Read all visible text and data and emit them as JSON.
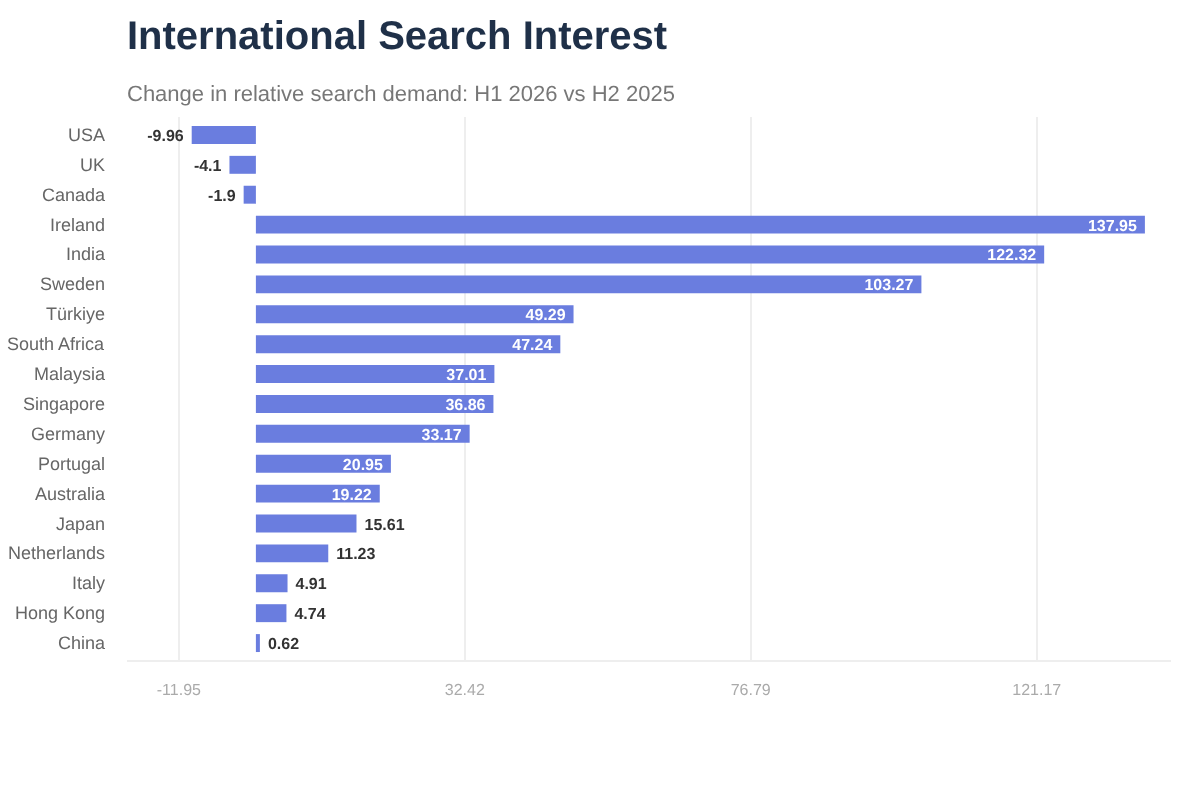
{
  "chart_data": {
    "type": "bar",
    "orientation": "horizontal",
    "title": "International Search Interest",
    "subtitle": "Change in relative search demand: H1 2026 vs H2 2025",
    "categories": [
      "USA",
      "UK",
      "Canada",
      "Ireland",
      "India",
      "Sweden",
      "Türkiye",
      "South Africa",
      "Malaysia",
      "Singapore",
      "Germany",
      "Portugal",
      "Australia",
      "Japan",
      "Netherlands",
      "Italy",
      "Hong Kong",
      "China"
    ],
    "values": [
      -9.96,
      -4.1,
      -1.9,
      137.95,
      122.32,
      103.27,
      49.29,
      47.24,
      37.01,
      36.86,
      33.17,
      20.95,
      19.22,
      15.61,
      11.23,
      4.91,
      4.74,
      0.62
    ],
    "color": "#6a7ddf",
    "xlim": [
      -20,
      142
    ],
    "xticks": [
      -11.95,
      32.42,
      76.79,
      121.17
    ],
    "grid": "x",
    "data_labels": true
  }
}
